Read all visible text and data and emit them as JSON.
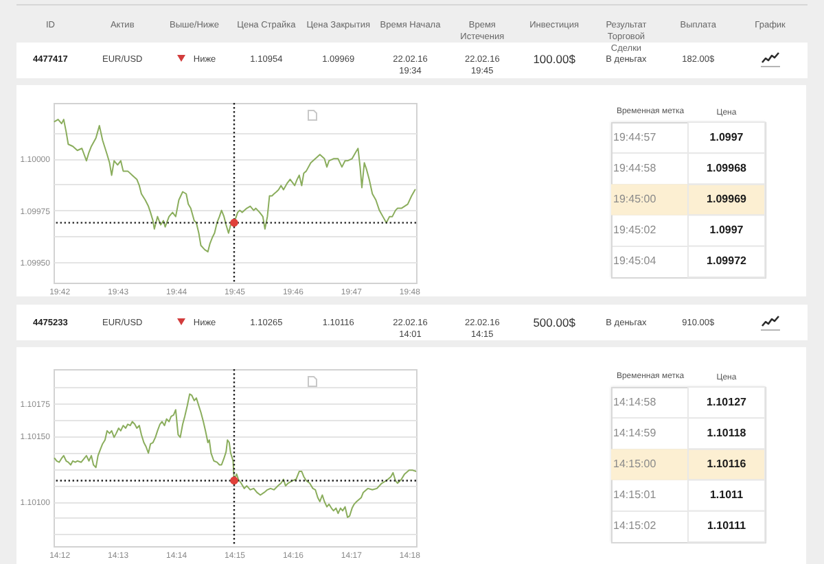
{
  "chart_data": [
    {
      "type": "other",
      "categories": [
        "ID",
        "Актив",
        "Выше/Ниже",
        "Цена Страйка",
        "Цена Закрытия",
        "Время Начала",
        "Время Истечения",
        "Инвестиция",
        "Результат Торговой Сделки",
        "Выплата",
        "График"
      ],
      "annotations": [
        "4477417",
        "EUR/USD",
        "Ниже",
        "1.10954",
        "1.09969",
        "22.02.16 19:34",
        "22.02.16 19:45",
        "100.00$",
        "В деньгах",
        "182.00$"
      ]
    },
    {
      "type": "line",
      "x": [
        19.6987,
        19.6997,
        19.7007,
        19.7013,
        19.702,
        19.7026,
        19.7039,
        19.7052,
        19.7065,
        19.7078,
        19.7085,
        19.7092,
        19.7105,
        19.7115,
        19.7124,
        19.7137,
        19.7144,
        19.715,
        19.7157,
        19.7167,
        19.7176,
        19.7183,
        19.7196,
        19.7209,
        19.7222,
        19.7229,
        19.7235,
        19.7246,
        19.7255,
        19.7261,
        19.7268,
        19.7272,
        19.7281,
        19.729,
        19.7298,
        19.7303,
        19.7314,
        19.7324,
        19.7333,
        19.7342,
        19.7353,
        19.7363,
        19.7369,
        19.7376,
        19.7386,
        19.7392,
        19.7399,
        19.7405,
        19.7416,
        19.7425,
        19.7431,
        19.7438,
        19.7444,
        19.7451,
        19.7458,
        19.7464,
        19.7471,
        19.7477,
        19.7484,
        19.749,
        19.7497,
        19.75,
        19.751,
        19.7516,
        19.7523,
        19.7536,
        19.7546,
        19.7556,
        19.7562,
        19.7573,
        19.7582,
        19.7588,
        19.7595,
        19.7601,
        19.7608,
        19.7614,
        19.7621,
        19.7627,
        19.7634,
        19.7641,
        19.7651,
        19.766,
        19.7673,
        19.768,
        19.7686,
        19.7693,
        19.7699,
        19.7706,
        19.7719,
        19.7732,
        19.7745,
        19.7758,
        19.7765,
        19.7771,
        19.7784,
        19.7797,
        19.7808,
        19.7817,
        19.7824,
        19.7837,
        19.7847,
        19.7854,
        19.786,
        19.7865,
        19.7872,
        19.7878,
        19.7886,
        19.7895,
        19.7905,
        19.7915,
        19.7925,
        19.7935,
        19.7944,
        19.7952,
        19.7961,
        19.7967,
        19.7978,
        19.7987,
        19.7996,
        19.8007,
        19.8017
      ],
      "series": [
        {
          "color": "#8aad5c",
          "values": [
            1.10018,
            1.10019,
            1.10017,
            1.10019,
            1.10013,
            1.10007,
            1.10006,
            1.10004,
            1.10005,
            1.09999,
            1.10003,
            1.10006,
            1.1001,
            1.10016,
            1.10009,
            1.10002,
            1.09998,
            1.09992,
            1.09999,
            1.09997,
            1.09999,
            1.09994,
            1.09994,
            1.09992,
            1.0999,
            1.09987,
            1.09983,
            1.0998,
            1.09977,
            1.09974,
            1.0997,
            1.09966,
            1.09972,
            1.09968,
            1.0997,
            1.09967,
            1.09972,
            1.09974,
            1.09972,
            1.0998,
            1.09984,
            1.09983,
            1.09978,
            1.09976,
            1.0997,
            1.09969,
            1.09964,
            1.09958,
            1.09956,
            1.09955,
            1.09959,
            1.09962,
            1.09964,
            1.09969,
            1.09972,
            1.09975,
            1.09972,
            1.09968,
            1.09964,
            1.09968,
            1.0997,
            1.09969,
            1.09974,
            1.09975,
            1.09974,
            1.09976,
            1.09977,
            1.09975,
            1.09976,
            1.09974,
            1.09972,
            1.09966,
            1.09972,
            1.09982,
            1.09982,
            1.09983,
            1.09984,
            1.09985,
            1.09987,
            1.09985,
            1.09988,
            1.0999,
            1.09987,
            1.0999,
            1.09992,
            1.09987,
            1.09993,
            1.09994,
            1.09998,
            1.1,
            1.10002,
            1.1,
            1.09996,
            1.09999,
            1.1,
            1.1,
            1.09996,
            1.09999,
            1.09999,
            1.1,
            1.10003,
            1.10005,
            1.09996,
            1.09986,
            1.09998,
            1.09995,
            1.0999,
            1.09983,
            1.0998,
            1.09975,
            1.09972,
            1.09969,
            1.09972,
            1.09972,
            1.09975,
            1.09976,
            1.09976,
            1.09977,
            1.09978,
            1.09982,
            1.09985
          ]
        },
        {
          "type": "scatter",
          "color": "#e0403a",
          "marker": "circle",
          "x": [
            19.75
          ],
          "values": [
            1.09969
          ]
        }
      ],
      "xlim": [
        19.6984,
        19.802
      ],
      "ylim": [
        1.0994,
        1.10027
      ],
      "xticks": [
        {
          "value": 19.7,
          "label": "19:42"
        },
        {
          "value": 19.71667,
          "label": "19:43"
        },
        {
          "value": 19.73333,
          "label": "19:44"
        },
        {
          "value": 19.75,
          "label": "19:45"
        },
        {
          "value": 19.76667,
          "label": "19:46"
        },
        {
          "value": 19.78333,
          "label": "19:47"
        },
        {
          "value": 19.8,
          "label": "19:48"
        }
      ],
      "yticks": [
        {
          "value": 1.0995,
          "label": "1.09950"
        },
        {
          "value": 1.099625,
          "label": null
        },
        {
          "value": 1.09975,
          "label": "1.09975"
        },
        {
          "value": 1.099875,
          "label": null
        },
        {
          "value": 1.1,
          "label": "1.10000"
        },
        {
          "value": 1.100125,
          "label": null
        }
      ],
      "grid": "y",
      "ref_lines": [
        {
          "axis": "x",
          "value": 19.75,
          "color": "#222222",
          "line_style": "dotted"
        },
        {
          "axis": "y",
          "value": 1.09969,
          "color": "#222222",
          "line_style": "dotted"
        }
      ]
    },
    {
      "type": "heatmap",
      "ylabel": "Временная метка",
      "categories": [
        "Цена"
      ],
      "y_categories": [
        "19:44:57",
        "19:44:58",
        "19:45:00",
        "19:45:02",
        "19:45:04"
      ],
      "cells": [
        [
          1.0997
        ],
        [
          1.09968
        ],
        [
          1.09969
        ],
        [
          1.0997
        ],
        [
          1.09972
        ]
      ],
      "data_labels": true,
      "bands": [
        {
          "axis": "y",
          "from": "19:45:00",
          "to": "19:45:00",
          "color": "#fcefd2"
        }
      ]
    },
    {
      "type": "other",
      "categories": [
        null,
        null,
        null,
        null,
        null,
        null,
        null,
        null,
        null,
        null,
        null
      ],
      "annotations": [
        "4475233",
        "EUR/USD",
        "Ниже",
        "1.10265",
        "1.10116",
        "22.02.16 14:01",
        "22.02.16 14:15",
        "500.00$",
        "В деньгах",
        "910.00$"
      ]
    },
    {
      "type": "line",
      "x": [
        14.1987,
        14.1993,
        14.2,
        14.2007,
        14.2013,
        14.202,
        14.2026,
        14.2033,
        14.2039,
        14.2046,
        14.2052,
        14.2063,
        14.2072,
        14.2078,
        14.2085,
        14.2092,
        14.2098,
        14.2105,
        14.2111,
        14.2118,
        14.2124,
        14.2131,
        14.2137,
        14.2144,
        14.215,
        14.2157,
        14.2163,
        14.217,
        14.2176,
        14.2183,
        14.219,
        14.2196,
        14.2203,
        14.2209,
        14.2216,
        14.2222,
        14.2229,
        14.2235,
        14.2242,
        14.2248,
        14.2255,
        14.2261,
        14.2268,
        14.2275,
        14.2281,
        14.2288,
        14.2294,
        14.2301,
        14.2307,
        14.2314,
        14.232,
        14.2327,
        14.2333,
        14.234,
        14.2346,
        14.2353,
        14.2359,
        14.2366,
        14.2373,
        14.2379,
        14.2386,
        14.2392,
        14.2399,
        14.2405,
        14.2412,
        14.2418,
        14.2425,
        14.2429,
        14.2434,
        14.2442,
        14.2451,
        14.2458,
        14.2464,
        14.2471,
        14.2477,
        14.2481,
        14.2486,
        14.249,
        14.2497,
        14.25,
        14.2507,
        14.2512,
        14.252,
        14.2529,
        14.2536,
        14.2546,
        14.2556,
        14.2565,
        14.2575,
        14.2586,
        14.2595,
        14.2604,
        14.2614,
        14.2625,
        14.2634,
        14.2641,
        14.2647,
        14.2654,
        14.2667,
        14.2677,
        14.2686,
        14.2693,
        14.2699,
        14.2706,
        14.2716,
        14.2725,
        14.2732,
        14.2739,
        14.2745,
        14.2752,
        14.2758,
        14.2765,
        14.2771,
        14.2778,
        14.2784,
        14.2791,
        14.2797,
        14.2804,
        14.281,
        14.2817,
        14.2824,
        14.283,
        14.2837,
        14.2843,
        14.285,
        14.2863,
        14.2869,
        14.2882,
        14.2895,
        14.2908,
        14.2922,
        14.2935,
        14.2948,
        14.2954,
        14.2961,
        14.2967,
        14.2978,
        14.2987,
        14.3,
        14.3009,
        14.302
      ],
      "series": [
        {
          "color": "#8aad5c",
          "values": [
            1.10133,
            1.10131,
            1.1013,
            1.10133,
            1.10135,
            1.10131,
            1.1013,
            1.10128,
            1.10131,
            1.1013,
            1.10131,
            1.1013,
            1.10133,
            1.10135,
            1.10131,
            1.10135,
            1.10128,
            1.10126,
            1.10135,
            1.1014,
            1.10144,
            1.10147,
            1.10154,
            1.10152,
            1.10154,
            1.10149,
            1.10152,
            1.10156,
            1.10154,
            1.10158,
            1.10156,
            1.10159,
            1.10158,
            1.10161,
            1.10159,
            1.10156,
            1.10158,
            1.10151,
            1.10145,
            1.10142,
            1.10137,
            1.10144,
            1.10145,
            1.10149,
            1.10154,
            1.10159,
            1.10161,
            1.10158,
            1.10163,
            1.10161,
            1.10165,
            1.10166,
            1.1017,
            1.10151,
            1.10149,
            1.10159,
            1.10165,
            1.10173,
            1.10182,
            1.10181,
            1.10177,
            1.10179,
            1.10173,
            1.10168,
            1.10161,
            1.10154,
            1.10145,
            1.10147,
            1.10137,
            1.10131,
            1.1013,
            1.10128,
            1.10128,
            1.10133,
            1.10138,
            1.10147,
            1.10145,
            1.10137,
            1.10131,
            1.10116,
            1.10121,
            1.10117,
            1.10114,
            1.1011,
            1.10112,
            1.10109,
            1.1011,
            1.10107,
            1.10105,
            1.10107,
            1.10109,
            1.1011,
            1.10109,
            1.10112,
            1.10114,
            1.10117,
            1.10112,
            1.10114,
            1.10116,
            1.10117,
            1.10123,
            1.10123,
            1.10119,
            1.10116,
            1.10114,
            1.1011,
            1.10109,
            1.10103,
            1.101,
            1.10105,
            1.101,
            1.10096,
            1.10098,
            1.10095,
            1.10093,
            1.10095,
            1.10091,
            1.10095,
            1.10093,
            1.10096,
            1.10088,
            1.10089,
            1.10095,
            1.10098,
            1.101,
            1.10103,
            1.10107,
            1.1011,
            1.10109,
            1.1011,
            1.10114,
            1.10116,
            1.10119,
            1.10122,
            1.10116,
            1.10114,
            1.10117,
            1.10121,
            1.10124,
            1.10124,
            1.10123
          ]
        },
        {
          "type": "scatter",
          "color": "#e0403a",
          "marker": "circle",
          "x": [
            14.25
          ],
          "values": [
            1.10116
          ]
        }
      ],
      "xlim": [
        14.1984,
        14.302
      ],
      "ylim": [
        1.10066,
        1.10201
      ],
      "xticks": [
        {
          "value": 14.2,
          "label": "14:12"
        },
        {
          "value": 14.21667,
          "label": "14:13"
        },
        {
          "value": 14.23333,
          "label": "14:14"
        },
        {
          "value": 14.25,
          "label": "14:15"
        },
        {
          "value": 14.26667,
          "label": "14:16"
        },
        {
          "value": 14.28333,
          "label": "14:17"
        },
        {
          "value": 14.3,
          "label": "14:18"
        }
      ],
      "yticks": [
        {
          "value": 1.10075,
          "label": null
        },
        {
          "value": 1.100875,
          "label": null
        },
        {
          "value": 1.101,
          "label": "1.10100"
        },
        {
          "value": 1.101125,
          "label": null
        },
        {
          "value": 1.10125,
          "label": null
        },
        {
          "value": 1.101375,
          "label": null
        },
        {
          "value": 1.1015,
          "label": "1.10150"
        },
        {
          "value": 1.101625,
          "label": null
        },
        {
          "value": 1.10175,
          "label": "1.10175"
        },
        {
          "value": 1.101875,
          "label": null
        }
      ],
      "grid": "y",
      "ref_lines": [
        {
          "axis": "x",
          "value": 14.25,
          "color": "#222222",
          "line_style": "dotted"
        },
        {
          "axis": "y",
          "value": 1.10116,
          "color": "#222222",
          "line_style": "dotted"
        }
      ]
    },
    {
      "type": "heatmap",
      "ylabel": "Временная метка",
      "categories": [
        "Цена"
      ],
      "y_categories": [
        "14:14:58",
        "14:14:59",
        "14:15:00",
        "14:15:01",
        "14:15:02"
      ],
      "cells": [
        [
          1.10127
        ],
        [
          1.10118
        ],
        [
          1.10116
        ],
        [
          1.1011
        ],
        [
          1.10111
        ]
      ],
      "data_labels": true,
      "bands": [
        {
          "axis": "y",
          "from": "14:15:00",
          "to": "14:15:00",
          "color": "#fcefd2"
        }
      ]
    }
  ]
}
